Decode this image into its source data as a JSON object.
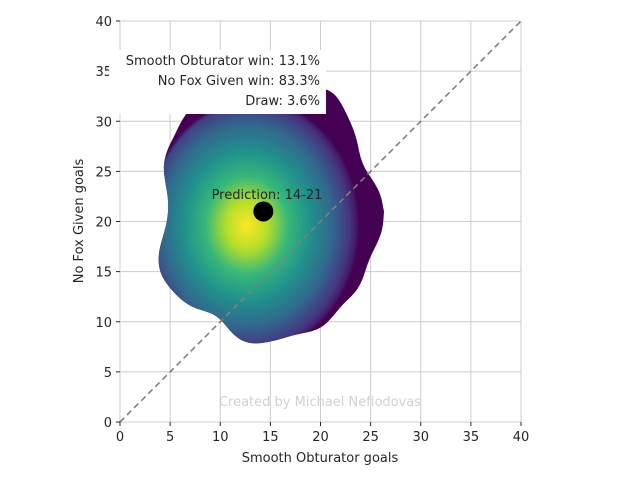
{
  "chart_data": {
    "type": "heatmap",
    "xlabel": "Smooth Obturator goals",
    "ylabel": "No Fox Given goals",
    "xlim": [
      0,
      40
    ],
    "ylim": [
      0,
      40
    ],
    "xticks": [
      0,
      5,
      10,
      15,
      20,
      25,
      30,
      35,
      40
    ],
    "yticks": [
      0,
      5,
      10,
      15,
      20,
      25,
      30,
      35,
      40
    ],
    "grid": true,
    "colormap": "viridis",
    "diagonal_reference": {
      "from": [
        0,
        0
      ],
      "to": [
        40,
        40
      ],
      "style": "dashed",
      "color": "#808080"
    },
    "density": {
      "center": [
        12.5,
        19
      ],
      "radius_x": 5.5,
      "radius_y": 6.5,
      "extent_x": [
        4,
        25.5
      ],
      "extent_y": [
        8.5,
        33.5
      ]
    },
    "prediction_point": {
      "x": 14.3,
      "y": 21,
      "label": "Prediction: 14-21"
    },
    "probabilities": [
      "Smooth Obturator win: 13.1%",
      "No Fox Given win: 83.3%",
      "Draw: 3.6%"
    ],
    "watermark": "Created by Michael Nefiodovas"
  },
  "colors": {
    "grid": "#cccccc",
    "point": "#000000",
    "diagonal": "#808080",
    "viridis_dark": "#440154",
    "viridis_yellow": "#fde725"
  }
}
